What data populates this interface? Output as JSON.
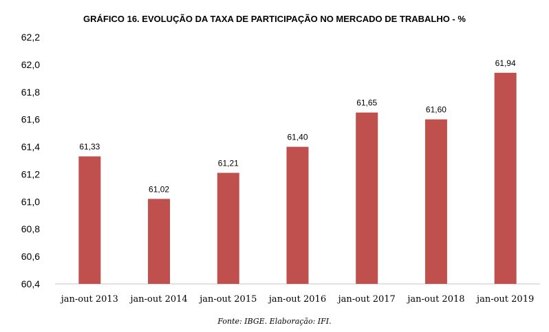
{
  "chart_data": {
    "type": "bar",
    "title": "GRÁFICO 16. EVOLUÇÃO DA TAXA DE PARTICIPAÇÃO NO MERCADO DE TRABALHO - %",
    "source": "Fonte: IBGE. Elaboração: IFI.",
    "categories": [
      "jan-out 2013",
      "jan-out 2014",
      "jan-out 2015",
      "jan-out 2016",
      "jan-out 2017",
      "jan-out 2018",
      "jan-out 2019"
    ],
    "values": [
      61.33,
      61.02,
      61.21,
      61.4,
      61.65,
      61.6,
      61.94
    ],
    "data_labels": [
      "61,33",
      "61,02",
      "61,21",
      "61,40",
      "61,65",
      "61,60",
      "61,94"
    ],
    "xlabel": "",
    "ylabel": "",
    "ylim": [
      60.4,
      62.2
    ],
    "yticks": [
      60.4,
      60.6,
      60.8,
      61.0,
      61.2,
      61.4,
      61.6,
      61.8,
      62.0,
      62.2
    ],
    "ytick_labels": [
      "60,4",
      "60,6",
      "60,8",
      "61,0",
      "61,2",
      "61,4",
      "61,6",
      "61,8",
      "62,0",
      "62,2"
    ],
    "grid": false,
    "legend": "none",
    "bar_color": "#C0504D"
  }
}
